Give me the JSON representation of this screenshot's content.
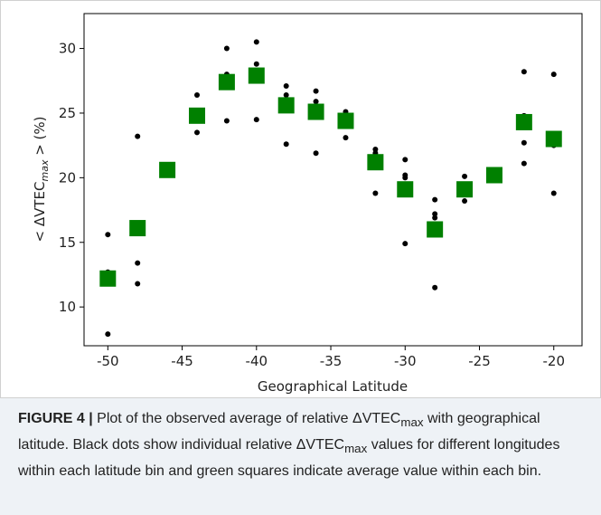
{
  "chart_data": {
    "type": "scatter",
    "xlabel": "Geographical Latitude",
    "ylabel": {
      "pre": "< ΔVTEC",
      "sub": "max",
      "post": " > (%)"
    },
    "xlim": [
      -51.6,
      -18.1
    ],
    "ylim": [
      7.0,
      32.7
    ],
    "xticks": [
      -50,
      -45,
      -40,
      -35,
      -30,
      -25,
      -20
    ],
    "yticks": [
      10,
      15,
      20,
      25,
      30
    ],
    "series": [
      {
        "marker": "circle",
        "color": "#000000",
        "x": [
          -50,
          -50,
          -50,
          -50,
          -48,
          -48,
          -48,
          -46,
          -46,
          -44,
          -44,
          -44,
          -42,
          -42,
          -42,
          -42,
          -40,
          -40,
          -40,
          -40,
          -38,
          -38,
          -38,
          -38,
          -36,
          -36,
          -36,
          -36,
          -34,
          -34,
          -34,
          -32,
          -32,
          -32,
          -30,
          -30,
          -30,
          -30,
          -28,
          -28,
          -28,
          -28,
          -26,
          -26,
          -24,
          -22,
          -22,
          -22,
          -22,
          -20,
          -20,
          -20,
          -20
        ],
        "values": [
          15.6,
          12.7,
          12.5,
          7.9,
          23.2,
          13.4,
          11.8,
          20.9,
          20.3,
          26.4,
          24.8,
          23.5,
          30.0,
          28.0,
          27.0,
          24.4,
          30.5,
          28.8,
          27.8,
          24.5,
          27.1,
          26.4,
          26.0,
          22.6,
          26.7,
          25.9,
          25.5,
          21.9,
          25.1,
          24.2,
          23.1,
          22.2,
          21.9,
          18.8,
          21.4,
          20.2,
          20.0,
          14.9,
          18.3,
          17.2,
          16.9,
          11.5,
          20.1,
          18.2,
          20.2,
          28.2,
          24.8,
          22.7,
          21.1,
          28.0,
          22.8,
          22.5,
          18.8
        ]
      },
      {
        "marker": "square",
        "color": "#008000",
        "x": [
          -50,
          -48,
          -46,
          -44,
          -42,
          -40,
          -38,
          -36,
          -34,
          -32,
          -30,
          -28,
          -26,
          -24,
          -22,
          -20
        ],
        "values": [
          12.2,
          16.1,
          20.6,
          24.8,
          27.4,
          27.9,
          25.6,
          25.1,
          24.4,
          21.2,
          19.1,
          16.0,
          19.1,
          20.2,
          24.3,
          23.0
        ]
      }
    ]
  },
  "caption": {
    "label": "FIGURE 4 |",
    "parts": [
      {
        "text": " Plot of the observed average of relative ΔVTEC"
      },
      {
        "text": "max",
        "sub": true
      },
      {
        "text": " with geographical latitude. Black dots show individual relative ΔVTEC"
      },
      {
        "text": "max",
        "sub": true
      },
      {
        "text": " values for different longitudes within each latitude bin and green squares indicate average value within each bin."
      }
    ]
  }
}
